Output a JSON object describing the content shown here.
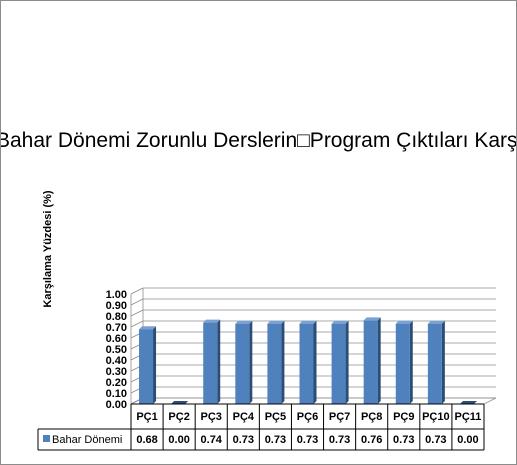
{
  "chart_data": {
    "type": "bar",
    "title": "Bahar Dönemi Zorunlu Derslerin□Program Çıktıları Karşılama Yüzdesi",
    "ylabel": "Karşılama Yüzdesi (%)",
    "xlabel": "",
    "categories": [
      "PÇ1",
      "PÇ2",
      "PÇ3",
      "PÇ4",
      "PÇ5",
      "PÇ6",
      "PÇ7",
      "PÇ8",
      "PÇ9",
      "PÇ10",
      "PÇ11"
    ],
    "series": [
      {
        "name": "Bahar Dönemi",
        "values": [
          0.68,
          0.0,
          0.74,
          0.73,
          0.73,
          0.73,
          0.73,
          0.76,
          0.73,
          0.73,
          0.0
        ],
        "labels": [
          "0.68",
          "0.00",
          "0.74",
          "0.73",
          "0.73",
          "0.73",
          "0.73",
          "0.76",
          "0.73",
          "0.73",
          "0.00"
        ]
      }
    ],
    "ylim": [
      0,
      1
    ],
    "yticks": [
      "0.00",
      "0.10",
      "0.20",
      "0.30",
      "0.40",
      "0.50",
      "0.60",
      "0.70",
      "0.80",
      "0.90",
      "1.00"
    ],
    "grid": true,
    "legend": "data-table",
    "colors": {
      "bar_front": "#4f81bd",
      "bar_side": "#2c4d75",
      "bar_top": "#7aa1d2"
    }
  }
}
